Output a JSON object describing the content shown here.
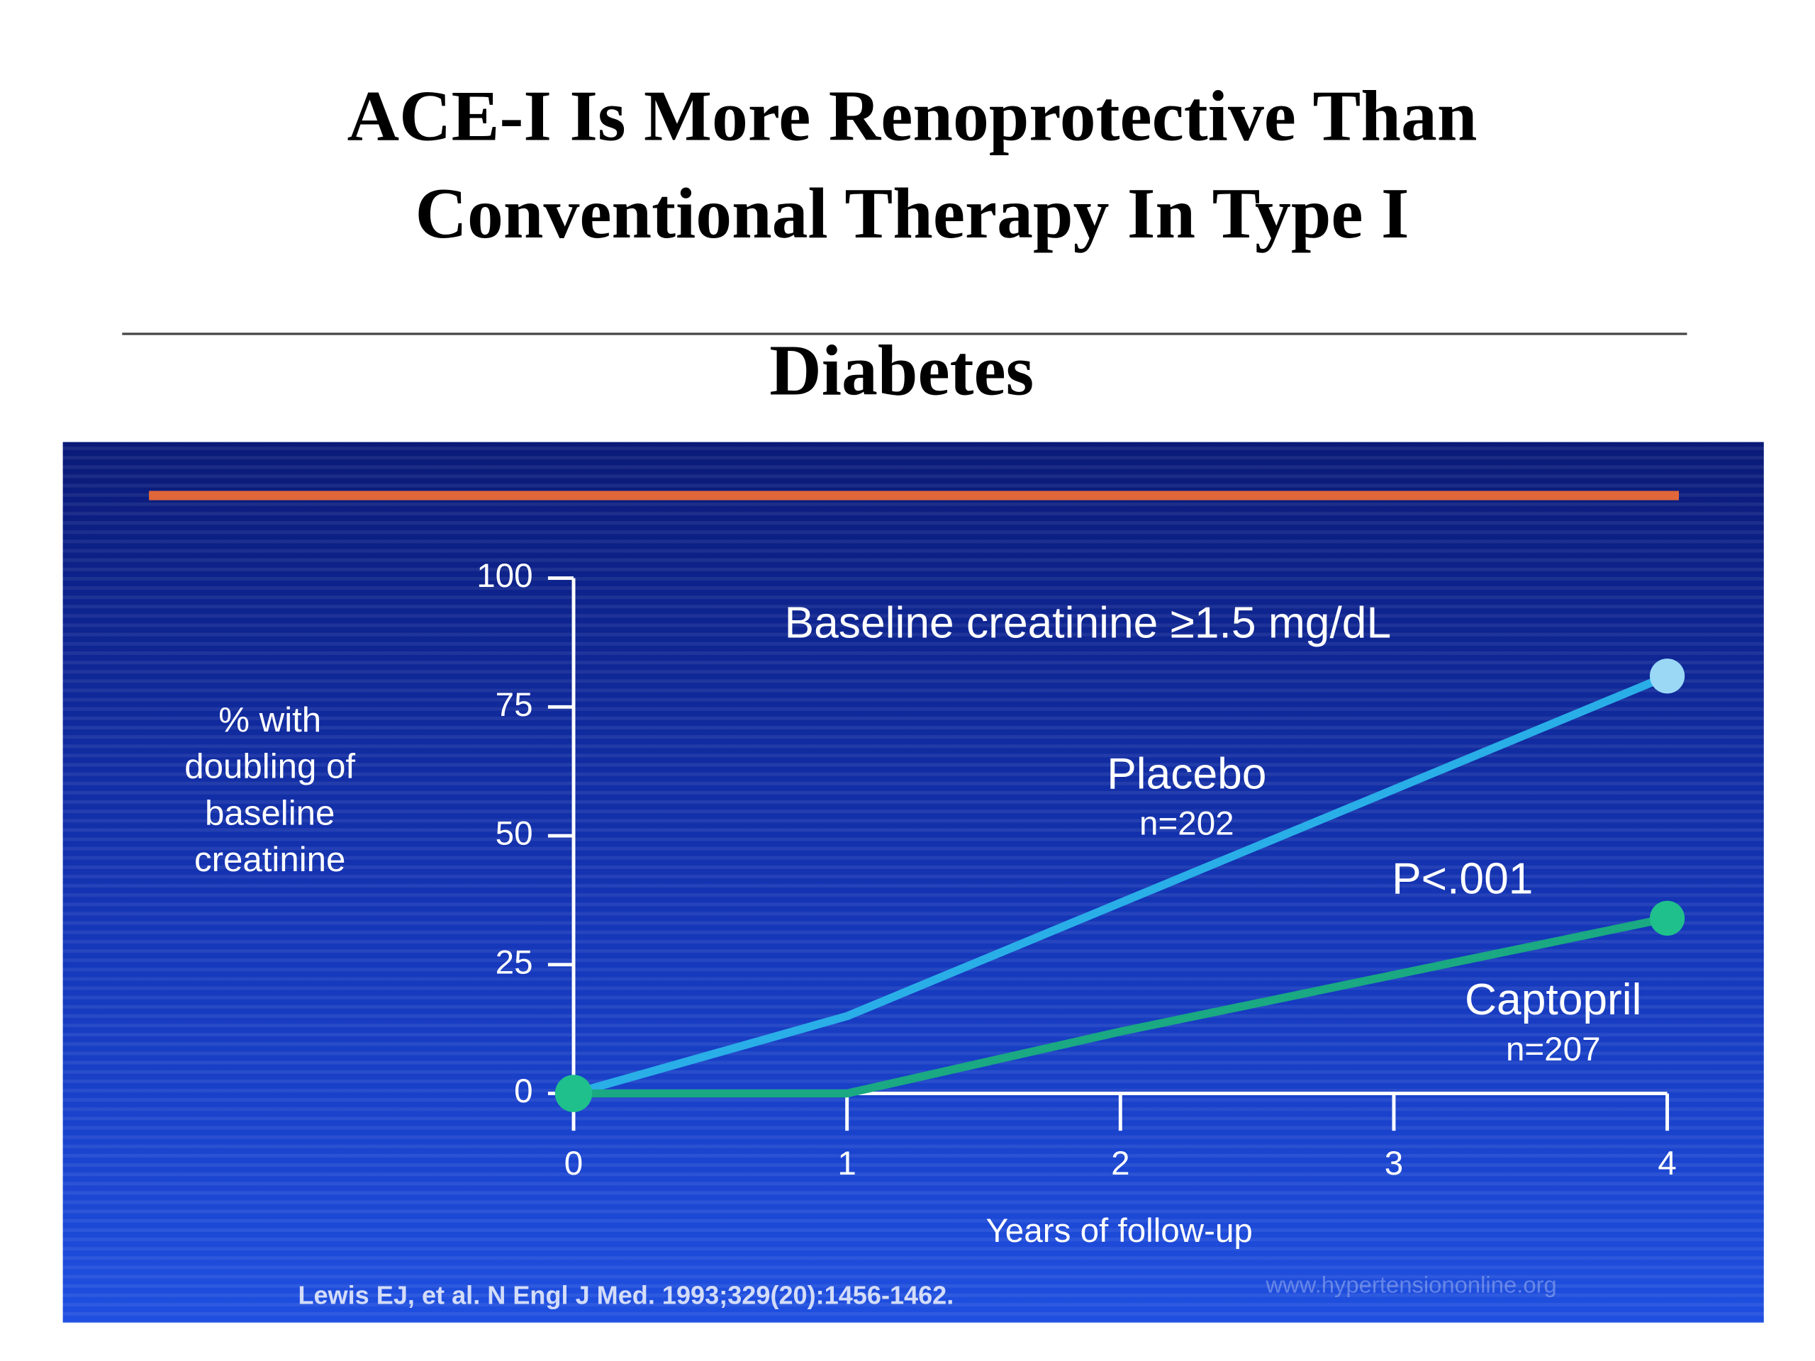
{
  "chart_data": {
    "type": "line",
    "title": [
      "ACE-I Is More Renoprotective Than",
      "Conventional Therapy In Type I",
      "Diabetes"
    ],
    "annotation": "Baseline creatinine ≥1.5 mg/dL",
    "p_value": "P<.001",
    "ylabel": [
      "% with",
      "doubling of",
      "baseline",
      "creatinine"
    ],
    "xlabel": "Years of follow-up",
    "x": [
      0,
      1,
      2,
      3,
      4
    ],
    "xlim": [
      0,
      4
    ],
    "xticks": [
      0,
      1,
      2,
      3,
      4
    ],
    "ylim": [
      0,
      100
    ],
    "yticks": [
      0,
      25,
      50,
      75,
      100
    ],
    "series": [
      {
        "name": "Placebo",
        "n_label": "n=202",
        "color": "#2aaee8",
        "marker_color": "#9ad8f6",
        "values": [
          0,
          15,
          37,
          59,
          81
        ]
      },
      {
        "name": "Captopril",
        "n_label": "n=207",
        "color": "#1aa982",
        "marker_color": "#1fc08c",
        "values": [
          0,
          0,
          12,
          23,
          34
        ]
      }
    ],
    "source": "Lewis EJ, et al. N Engl J Med. 1993;329(20):1456-1462.",
    "watermark": "www.hypertensiononline.org"
  }
}
